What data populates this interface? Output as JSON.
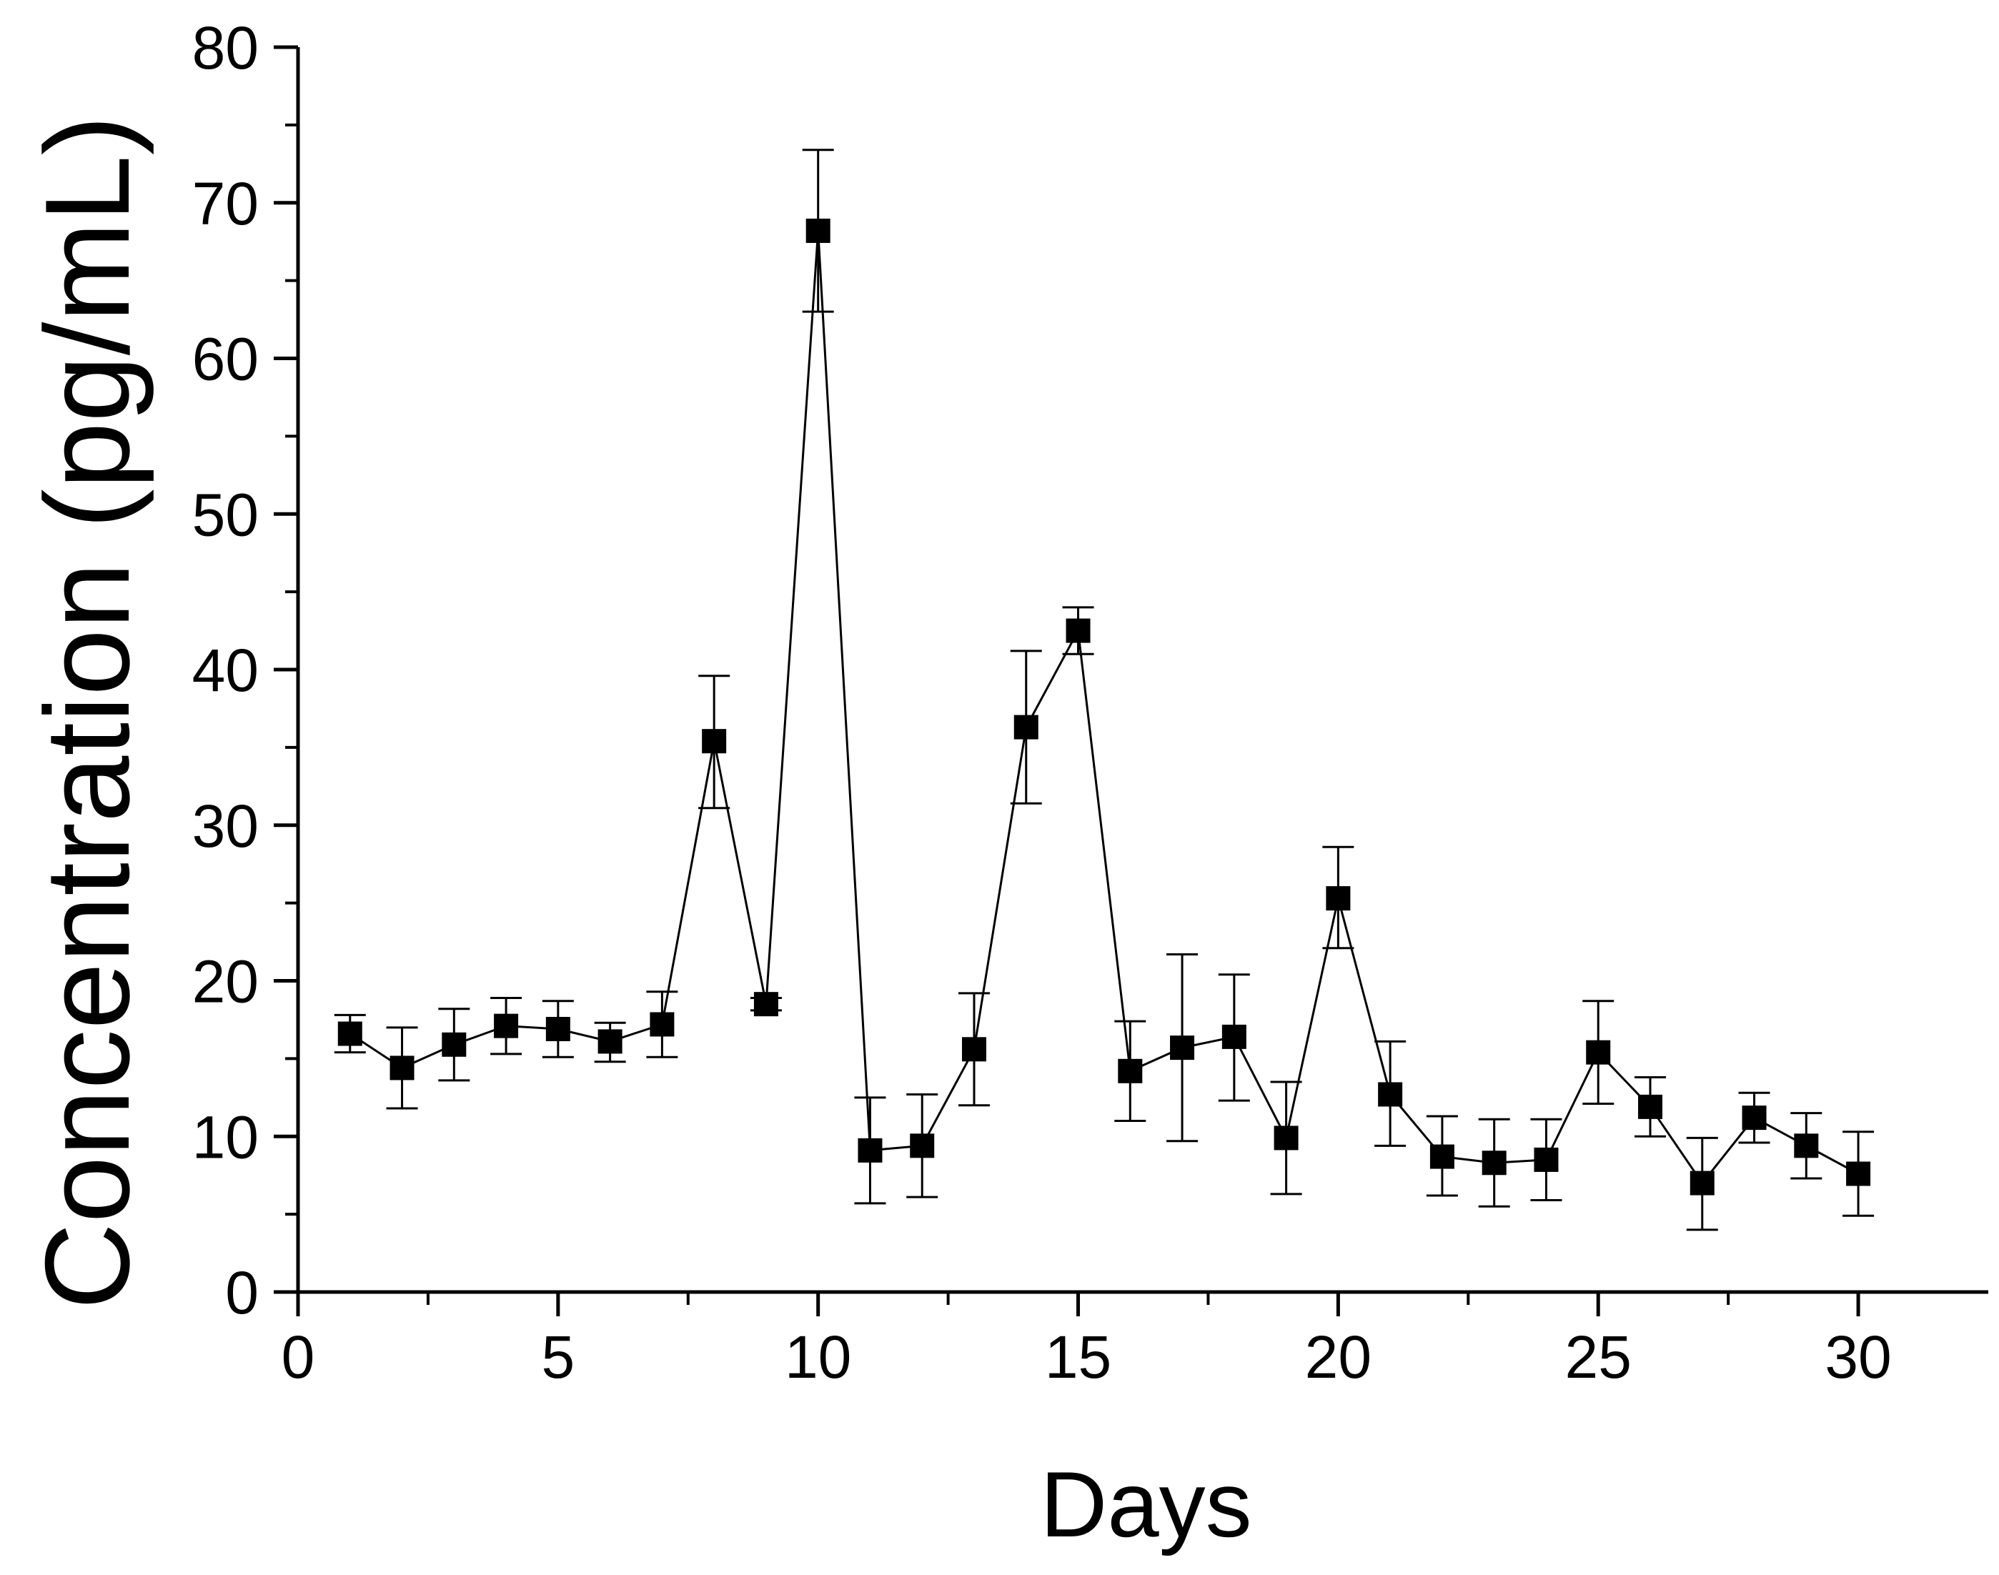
{
  "chart_data": {
    "type": "line",
    "title": "",
    "xlabel": "Days",
    "ylabel": "Concentration (pg/mL)",
    "xlim": [
      0,
      32.5
    ],
    "ylim": [
      0,
      80
    ],
    "x_ticks": [
      0,
      5,
      10,
      15,
      20,
      25,
      30
    ],
    "x_tick_labels": [
      "0",
      "5",
      "10",
      "15",
      "20",
      "25",
      "30"
    ],
    "y_ticks": [
      0,
      10,
      20,
      30,
      40,
      50,
      60,
      70,
      80
    ],
    "y_tick_labels": [
      "0",
      "10",
      "20",
      "30",
      "40",
      "50",
      "60",
      "70",
      "80"
    ],
    "grid": false,
    "legend": "none",
    "colors": {
      "series": "#000000",
      "axis": "#000000",
      "background": "#ffffff"
    },
    "series": [
      {
        "name": "Concentration",
        "marker": "square",
        "x": [
          1,
          2,
          3,
          4,
          5,
          6,
          7,
          8,
          9,
          10,
          11,
          12,
          13,
          14,
          15,
          16,
          17,
          18,
          19,
          20,
          21,
          22,
          23,
          24,
          25,
          26,
          27,
          28,
          29,
          30
        ],
        "y": [
          16.6,
          14.4,
          15.9,
          17.1,
          16.9,
          16.1,
          17.2,
          35.4,
          18.5,
          68.2,
          9.1,
          9.4,
          15.6,
          36.3,
          42.5,
          14.2,
          15.7,
          16.4,
          9.9,
          25.3,
          12.7,
          8.7,
          8.3,
          8.5,
          15.4,
          11.9,
          7.0,
          11.2,
          9.4,
          7.6
        ],
        "y_err_upper": [
          17.8,
          17.0,
          18.2,
          18.9,
          18.7,
          17.3,
          19.3,
          39.6,
          18.9,
          73.4,
          12.5,
          12.7,
          19.2,
          41.2,
          44.0,
          17.4,
          21.7,
          20.4,
          13.5,
          28.6,
          16.1,
          11.3,
          11.1,
          11.1,
          18.7,
          13.8,
          9.9,
          12.8,
          11.5,
          10.3
        ],
        "y_err_lower": [
          15.4,
          11.8,
          13.6,
          15.3,
          15.1,
          14.8,
          15.1,
          31.1,
          18.1,
          63.0,
          5.7,
          6.1,
          12.0,
          31.4,
          41.0,
          11.0,
          9.7,
          12.3,
          6.3,
          22.1,
          9.4,
          6.2,
          5.5,
          5.9,
          12.1,
          10.0,
          4.0,
          9.6,
          7.3,
          4.9
        ]
      }
    ]
  }
}
